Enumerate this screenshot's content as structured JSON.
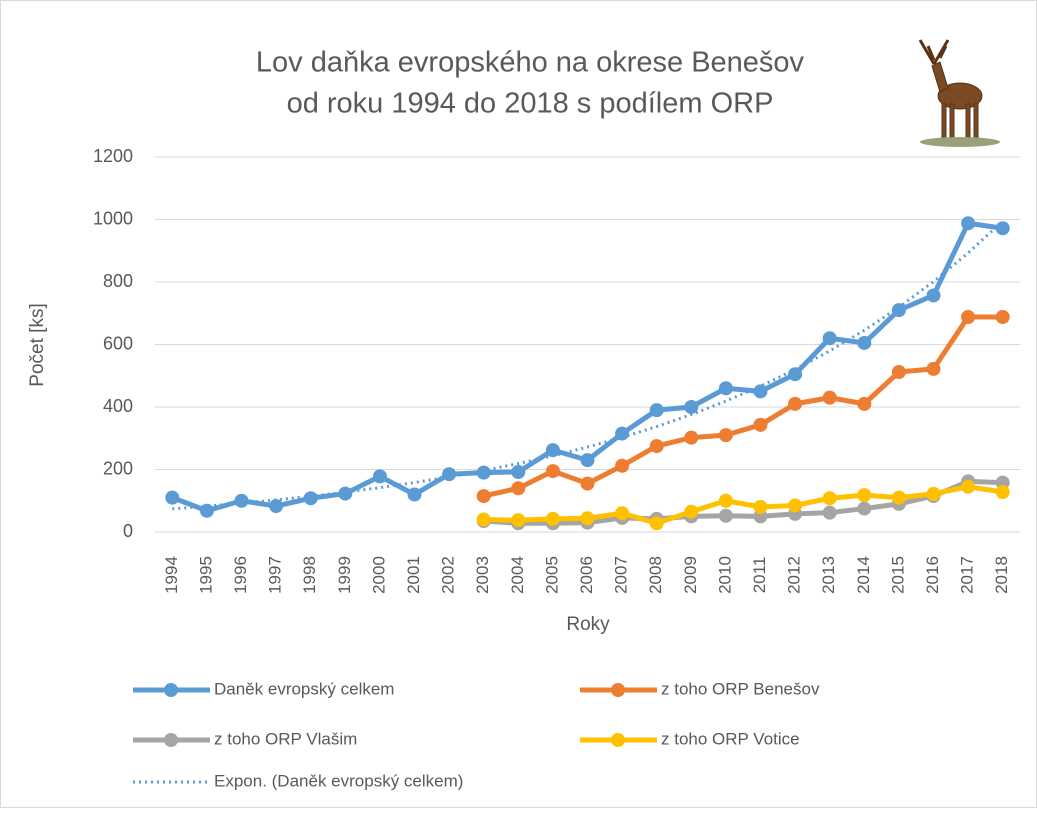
{
  "chart_data": {
    "type": "line",
    "title": [
      "Lov daňka evropského na okrese Benešov",
      "od roku 1994 do 2018 s podílem ORP"
    ],
    "xlabel": "Roky",
    "ylabel": "Počet [ks]",
    "categories": [
      "1994",
      "1995",
      "1996",
      "1997",
      "1998",
      "1999",
      "2000",
      "2001",
      "2002",
      "2003",
      "2004",
      "2005",
      "2006",
      "2007",
      "2008",
      "2009",
      "2010",
      "2011",
      "2012",
      "2013",
      "2014",
      "2015",
      "2016",
      "2017",
      "2018"
    ],
    "series": [
      {
        "name": "Daněk evropský celkem",
        "color": "#5b9bd5",
        "values": [
          110,
          68,
          100,
          83,
          108,
          123,
          178,
          120,
          185,
          190,
          192,
          262,
          230,
          315,
          390,
          400,
          460,
          450,
          505,
          620,
          605,
          710,
          757,
          988,
          972
        ]
      },
      {
        "name": "z toho ORP Benešov",
        "color": "#ed7d31",
        "values": [
          null,
          null,
          null,
          null,
          null,
          null,
          null,
          null,
          null,
          115,
          140,
          195,
          155,
          212,
          275,
          302,
          310,
          343,
          410,
          430,
          410,
          512,
          522,
          688,
          688
        ]
      },
      {
        "name": "z toho ORP Vlašim",
        "color": "#a5a5a5",
        "values": [
          null,
          null,
          null,
          null,
          null,
          null,
          null,
          null,
          null,
          35,
          28,
          28,
          30,
          45,
          42,
          50,
          52,
          50,
          58,
          62,
          75,
          90,
          115,
          162,
          158
        ]
      },
      {
        "name": "z toho ORP Votice",
        "color": "#ffc000",
        "values": [
          null,
          null,
          null,
          null,
          null,
          null,
          null,
          null,
          null,
          40,
          38,
          42,
          44,
          60,
          28,
          65,
          100,
          80,
          85,
          108,
          118,
          110,
          122,
          145,
          128
        ]
      }
    ],
    "trendline": {
      "name": "Expon. (Daněk evropský celkem)",
      "color": "#5b9bd5",
      "series": 0,
      "kind": "exponential"
    },
    "ylim": [
      0,
      1200
    ],
    "yticks": [
      0,
      200,
      400,
      600,
      800,
      1000,
      1200
    ],
    "grid": true
  }
}
